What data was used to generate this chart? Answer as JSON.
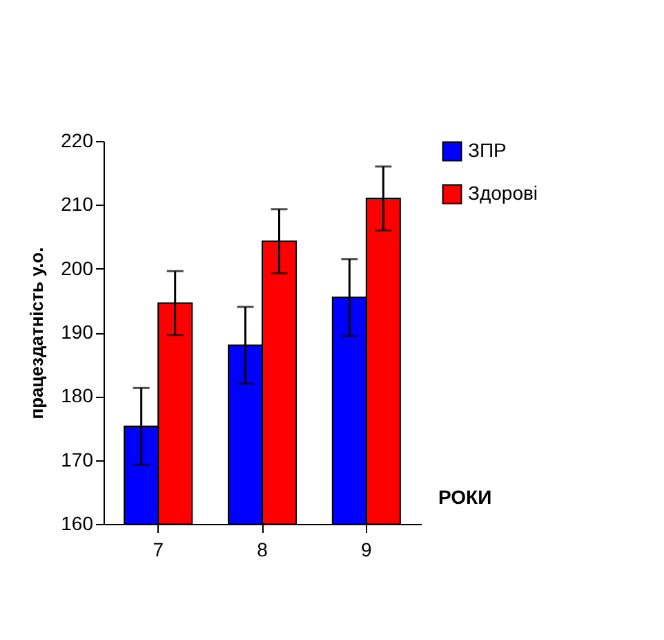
{
  "chart_data": {
    "type": "bar",
    "categories": [
      "7",
      "8",
      "9"
    ],
    "xlabel": "РОКИ",
    "ylabel": "працездатність  у.о.",
    "series": [
      {
        "name": "ЗПР",
        "color": "#0000ff",
        "values": [
          175.3,
          188,
          195.5
        ],
        "errors": [
          6,
          6,
          6
        ]
      },
      {
        "name": "Здорові",
        "color": "#ff0000",
        "values": [
          194.6,
          204.3,
          211
        ],
        "errors": [
          5,
          5,
          5
        ]
      }
    ],
    "ylim": [
      160,
      220
    ],
    "yticks": [
      160,
      170,
      180,
      190,
      200,
      210,
      220
    ],
    "grid": false,
    "legend": "right"
  }
}
